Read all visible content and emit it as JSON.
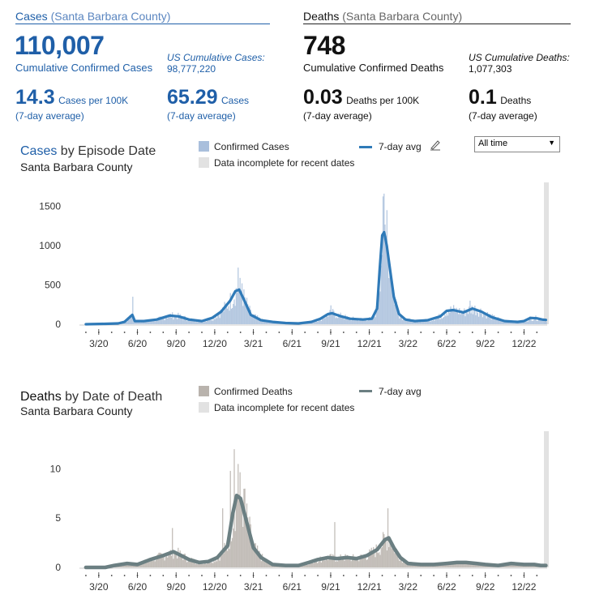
{
  "cases_summary": {
    "header_title": "Cases",
    "header_subtitle": "(Santa Barbara County)",
    "total": "110,007",
    "total_label": "Cumulative Confirmed Cases",
    "us_label": "US Cumulative Cases:",
    "us_value": "98,777,220",
    "per100k": "14.3",
    "per100k_label": "Cases per 100K",
    "per100k_note": "(7-day average)",
    "avg": "65.29",
    "avg_label": "Cases",
    "avg_note": "(7-day average)"
  },
  "deaths_summary": {
    "header_title": "Deaths",
    "header_subtitle": "(Santa Barbara County)",
    "total": "748",
    "total_label": "Cumulative Confirmed Deaths",
    "us_label": "US Cumulative Deaths:",
    "us_value": "1,077,303",
    "per100k": "0.03",
    "per100k_label": "Deaths per 100K",
    "per100k_note": "(7-day average)",
    "avg": "0.1",
    "avg_label": "Deaths",
    "avg_note": "(7-day average)"
  },
  "cases_chart_header": {
    "title_strong": "Cases",
    "title_rest": " by Episode Date",
    "subtitle": "Santa Barbara County",
    "legend_bars": "Confirmed Cases",
    "legend_incomplete": "Data incomplete for recent dates",
    "legend_avg": "7-day avg",
    "select_value": "All time"
  },
  "deaths_chart_header": {
    "title_strong": "Deaths",
    "title_rest": " by Date of Death",
    "subtitle": "Santa Barbara County",
    "legend_bars": "Confirmed Deaths",
    "legend_incomplete": "Data incomplete for recent dates",
    "legend_avg": "7-day avg"
  },
  "colors": {
    "cases_line": "#2f7ab8",
    "cases_bar": "#a9bfdc",
    "deaths_line": "#6b7f82",
    "deaths_bar": "#b9b3ad",
    "incomplete": "#e2e2e2"
  },
  "chart_data": [
    {
      "type": "bar",
      "title": "Cases by Episode Date",
      "subtitle": "Santa Barbara County",
      "xlabel": "",
      "ylabel": "",
      "ylim": [
        0,
        1700
      ],
      "yticks": [
        0,
        500,
        1000,
        1500
      ],
      "x_tick_labels": [
        "3/20",
        "6/20",
        "9/20",
        "12/20",
        "3/21",
        "6/21",
        "9/21",
        "12/21",
        "3/22",
        "6/22",
        "9/22",
        "12/22"
      ],
      "x_tick_months": [
        2,
        5,
        8,
        11,
        14,
        17,
        20,
        23,
        26,
        29,
        32,
        35
      ],
      "x_range_months": [
        0.5,
        36.8
      ],
      "series": [
        {
          "name": "7-day avg",
          "points": [
            [
              1.0,
              0
            ],
            [
              2.5,
              5
            ],
            [
              3.5,
              10
            ],
            [
              4.0,
              30
            ],
            [
              4.6,
              120
            ],
            [
              4.8,
              40
            ],
            [
              5.5,
              40
            ],
            [
              6.5,
              60
            ],
            [
              7.5,
              110
            ],
            [
              8.2,
              100
            ],
            [
              9.0,
              60
            ],
            [
              10.0,
              40
            ],
            [
              10.8,
              80
            ],
            [
              11.5,
              160
            ],
            [
              12.2,
              300
            ],
            [
              12.6,
              420
            ],
            [
              12.9,
              440
            ],
            [
              13.3,
              300
            ],
            [
              13.8,
              120
            ],
            [
              14.6,
              50
            ],
            [
              15.5,
              30
            ],
            [
              16.5,
              15
            ],
            [
              17.5,
              10
            ],
            [
              18.5,
              30
            ],
            [
              19.2,
              70
            ],
            [
              19.8,
              130
            ],
            [
              20.1,
              140
            ],
            [
              20.7,
              105
            ],
            [
              21.5,
              70
            ],
            [
              22.5,
              60
            ],
            [
              23.2,
              70
            ],
            [
              23.6,
              200
            ],
            [
              23.8,
              700
            ],
            [
              24.0,
              1130
            ],
            [
              24.15,
              1170
            ],
            [
              24.35,
              1000
            ],
            [
              24.6,
              700
            ],
            [
              24.9,
              350
            ],
            [
              25.3,
              130
            ],
            [
              25.8,
              60
            ],
            [
              26.5,
              40
            ],
            [
              27.5,
              50
            ],
            [
              28.5,
              100
            ],
            [
              29.0,
              170
            ],
            [
              29.5,
              180
            ],
            [
              30.3,
              150
            ],
            [
              31.0,
              200
            ],
            [
              31.7,
              160
            ],
            [
              32.5,
              90
            ],
            [
              33.5,
              40
            ],
            [
              34.5,
              30
            ],
            [
              35.0,
              40
            ],
            [
              35.5,
              80
            ],
            [
              36.0,
              75
            ],
            [
              36.4,
              60
            ],
            [
              36.7,
              55
            ]
          ]
        },
        {
          "name": "Confirmed Cases",
          "spikes": [
            [
              4.6,
              350
            ],
            [
              12.8,
              720
            ],
            [
              24.1,
              1660
            ],
            [
              24.3,
              1450
            ],
            [
              20.0,
              240
            ],
            [
              30.8,
              300
            ],
            [
              13.1,
              520
            ]
          ]
        }
      ]
    },
    {
      "type": "bar",
      "title": "Deaths by Date of Death",
      "subtitle": "Santa Barbara County",
      "xlabel": "",
      "ylabel": "",
      "ylim": [
        0,
        13
      ],
      "yticks": [
        0,
        5,
        10
      ],
      "x_tick_labels": [
        "3/20",
        "6/20",
        "9/20",
        "12/20",
        "3/21",
        "6/21",
        "9/21",
        "12/21",
        "3/22",
        "6/22",
        "9/22",
        "12/22"
      ],
      "x_tick_months": [
        2,
        5,
        8,
        11,
        14,
        17,
        20,
        23,
        26,
        29,
        32,
        35
      ],
      "x_range_months": [
        0.5,
        36.8
      ],
      "series": [
        {
          "name": "7-day avg",
          "points": [
            [
              1.0,
              0
            ],
            [
              2.5,
              0
            ],
            [
              3.2,
              0.2
            ],
            [
              4.2,
              0.4
            ],
            [
              5.0,
              0.3
            ],
            [
              6.0,
              0.8
            ],
            [
              7.0,
              1.2
            ],
            [
              7.8,
              1.6
            ],
            [
              8.4,
              1.2
            ],
            [
              9.0,
              0.8
            ],
            [
              9.8,
              0.5
            ],
            [
              10.5,
              0.6
            ],
            [
              11.2,
              1.0
            ],
            [
              12.0,
              2.2
            ],
            [
              12.4,
              5.5
            ],
            [
              12.7,
              7.3
            ],
            [
              13.0,
              7.0
            ],
            [
              13.5,
              4.5
            ],
            [
              14.0,
              2.0
            ],
            [
              14.6,
              1.0
            ],
            [
              15.5,
              0.3
            ],
            [
              16.5,
              0.2
            ],
            [
              17.5,
              0.2
            ],
            [
              18.3,
              0.5
            ],
            [
              19.0,
              0.8
            ],
            [
              19.8,
              1.0
            ],
            [
              20.5,
              0.9
            ],
            [
              21.3,
              1.0
            ],
            [
              22.0,
              0.9
            ],
            [
              22.8,
              1.2
            ],
            [
              23.6,
              1.8
            ],
            [
              24.2,
              2.8
            ],
            [
              24.5,
              3.0
            ],
            [
              24.9,
              2.0
            ],
            [
              25.4,
              1.0
            ],
            [
              26.0,
              0.4
            ],
            [
              27.0,
              0.3
            ],
            [
              28.0,
              0.3
            ],
            [
              29.0,
              0.4
            ],
            [
              29.8,
              0.5
            ],
            [
              30.5,
              0.5
            ],
            [
              31.3,
              0.4
            ],
            [
              32.0,
              0.3
            ],
            [
              33.0,
              0.2
            ],
            [
              34.0,
              0.4
            ],
            [
              35.0,
              0.3
            ],
            [
              35.8,
              0.3
            ],
            [
              36.3,
              0.2
            ],
            [
              36.7,
              0.2
            ]
          ]
        },
        {
          "name": "Confirmed Deaths",
          "spikes": [
            [
              12.5,
              12
            ],
            [
              12.8,
              10.5
            ],
            [
              12.2,
              9.8
            ],
            [
              13.3,
              8
            ],
            [
              11.6,
              6
            ],
            [
              24.4,
              6
            ],
            [
              20.3,
              4.6
            ],
            [
              7.7,
              4
            ]
          ]
        }
      ]
    }
  ]
}
